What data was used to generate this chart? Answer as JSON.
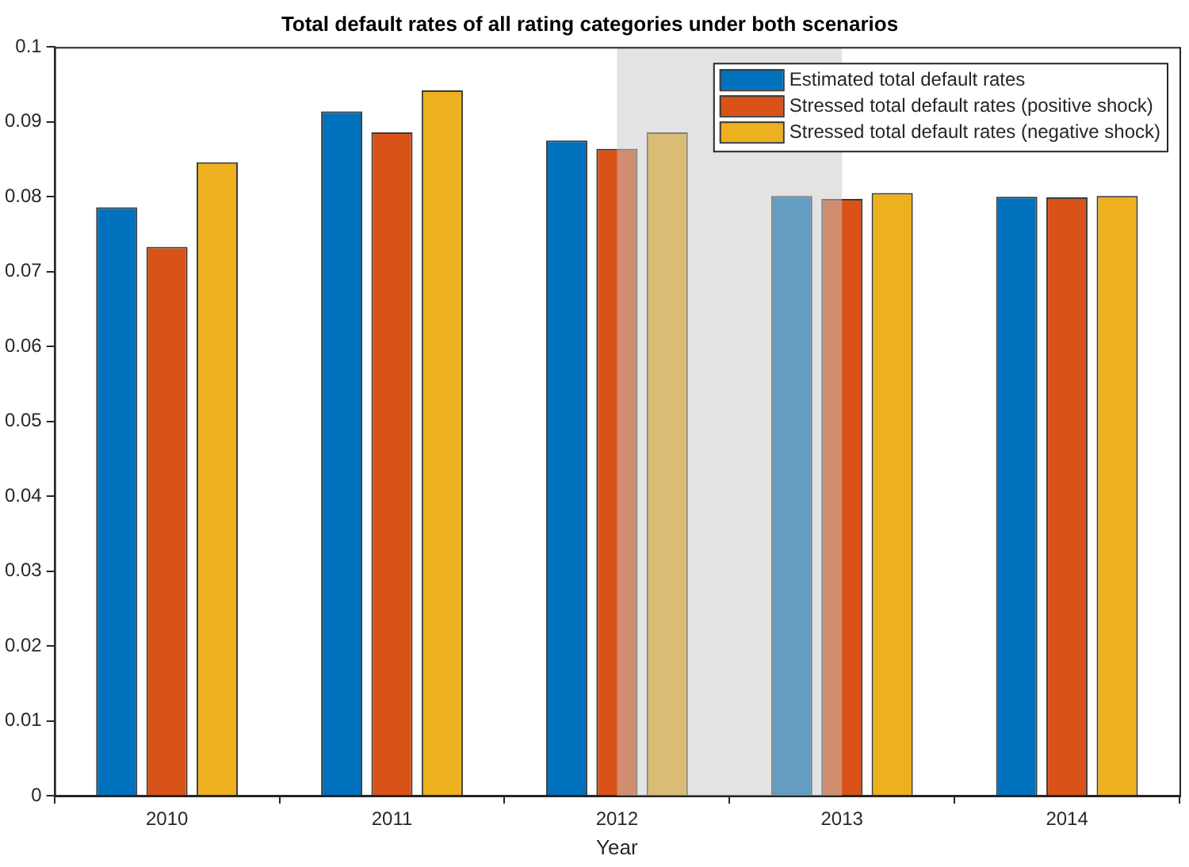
{
  "chart_data": {
    "type": "bar",
    "title": "Total default rates of all rating categories under both scenarios",
    "xlabel": "Year",
    "x": [
      2010,
      2011,
      2012,
      2013,
      2014
    ],
    "series": [
      {
        "name": "Estimated total default rates",
        "color": "#0072bd",
        "values": [
          0.0786,
          0.0914,
          0.0875,
          0.0801,
          0.08
        ]
      },
      {
        "name": "Stressed total default rates (positive shock)",
        "color": "#d95319",
        "values": [
          0.0733,
          0.0886,
          0.0864,
          0.0797,
          0.0799
        ]
      },
      {
        "name": "Stressed total default rates (negative shock)",
        "color": "#edb120",
        "values": [
          0.0846,
          0.0942,
          0.0886,
          0.0805,
          0.0801
        ]
      }
    ],
    "xlim": [
      2009.5,
      2014.5
    ],
    "xticks": [
      2010,
      2011,
      2012,
      2013,
      2014
    ],
    "ylim": [
      0,
      0.1
    ],
    "yticks": [
      0,
      0.01,
      0.02,
      0.03,
      0.04,
      0.05,
      0.06,
      0.07,
      0.08,
      0.09,
      0.1
    ],
    "bands": [
      {
        "axis": "x",
        "from": 2012,
        "to": 2013,
        "color": "#c8c8c8"
      }
    ],
    "grid": false,
    "legend": "top right"
  }
}
